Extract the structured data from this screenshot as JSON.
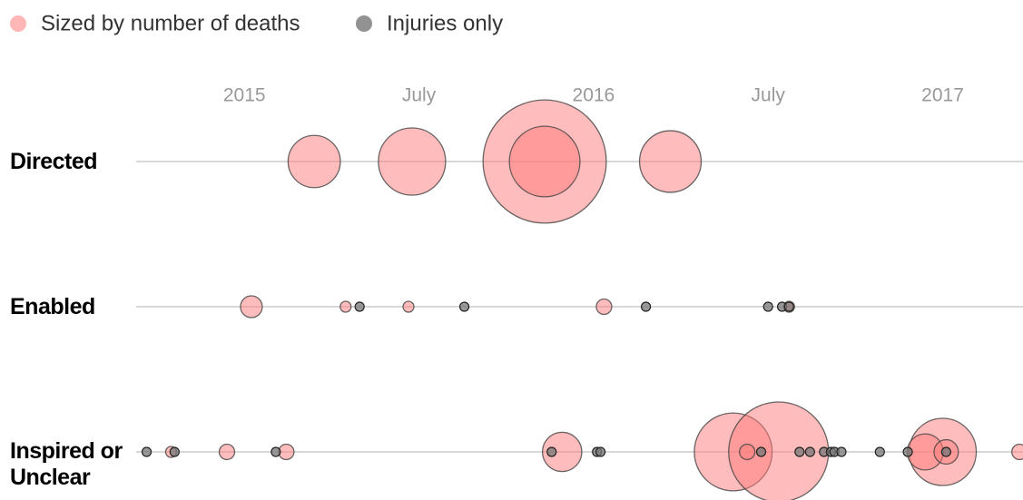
{
  "chart_data": {
    "type": "scatter",
    "series": [
      {
        "name": "Sized by number of deaths",
        "color": "#ff7a7a"
      },
      {
        "name": "Injuries only",
        "color": "#777777"
      }
    ],
    "xlim": [
      2014.69,
      2017.23
    ],
    "xticks": [
      2015,
      {
        "value": 2015.5,
        "label": "July"
      },
      2016,
      {
        "value": 2016.5,
        "label": "July"
      },
      2017
    ],
    "rows": [
      {
        "label": "Directed",
        "deaths": {
          "x": [
            2015.2,
            2015.48,
            2015.86,
            2015.86,
            2016.22
          ],
          "values": [
            23,
            38,
            128,
            42,
            32
          ]
        },
        "injuries": {
          "x": []
        }
      },
      {
        "label": "Enabled",
        "deaths": {
          "x": [
            2015.02,
            2015.29,
            2015.47,
            2016.03,
            2016.56
          ],
          "values": [
            4,
            1,
            1,
            2,
            1
          ]
        },
        "injuries": {
          "x": [
            2015.33,
            2015.63,
            2016.15,
            2016.5,
            2016.54,
            2016.56
          ]
        }
      },
      {
        "label": "Inspired or Unclear",
        "deaths": {
          "x": [
            2014.79,
            2014.95,
            2015.12,
            2015.91,
            2016.4,
            2016.53,
            2016.44,
            2017.0,
            2016.95,
            2017.01,
            2017.22
          ],
          "values": [
            1,
            2,
            2,
            13,
            51,
            84,
            2,
            38,
            11,
            5,
            2
          ]
        },
        "injuries": {
          "x": [
            2014.72,
            2014.8,
            2015.09,
            2015.88,
            2016.01,
            2016.02,
            2016.48,
            2016.59,
            2016.62,
            2016.66,
            2016.68,
            2016.69,
            2016.71,
            2016.82,
            2016.9,
            2017.01
          ]
        }
      }
    ]
  }
}
